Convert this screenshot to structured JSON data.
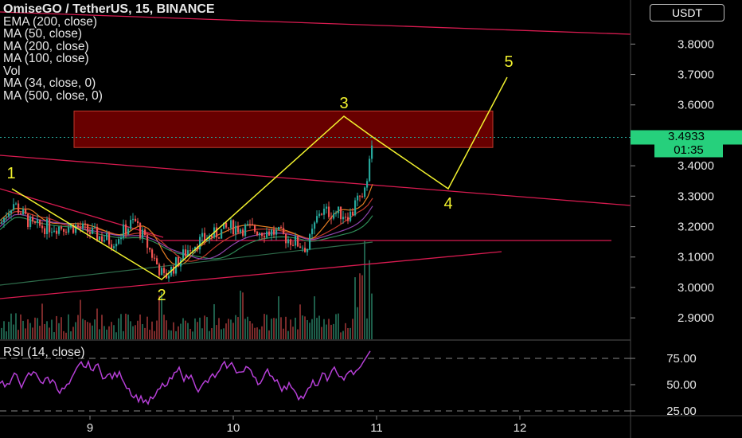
{
  "legend": {
    "title": "OmiseGO / TetherUS, 15, BINANCE",
    "studies": [
      "EMA (200, close)",
      "MA (50, close)",
      "MA (200, close)",
      "MA (100, close)",
      "Vol",
      "MA (34, close, 0)",
      "MA (500, close, 0)"
    ]
  },
  "currency_button": "USDT",
  "price_axis": {
    "ticks": [
      "3.8000",
      "3.7000",
      "3.6000",
      "3.4000",
      "3.3000",
      "3.2000",
      "3.1000",
      "3.0000",
      "2.9000"
    ],
    "current_price": "3.4933",
    "countdown": "01:35",
    "current_color": "#26d07c"
  },
  "time_axis": {
    "ticks": [
      "9",
      "10",
      "11",
      "12"
    ]
  },
  "rsi": {
    "label": "RSI (14, close)",
    "ticks": [
      "75.00",
      "50.00",
      "25.00"
    ],
    "color": "#b53fd6"
  },
  "wave_labels": [
    "1",
    "2",
    "3",
    "4",
    "5"
  ],
  "colors": {
    "wave": "#f2f22e",
    "trendline": "#d81b50",
    "zone": "#8b0000",
    "up": "#26a69a",
    "down": "#ef5350"
  },
  "chart_data": {
    "type": "candlestick",
    "title": "OmiseGO / TetherUS, 15, BINANCE",
    "x_ticks": [
      "9",
      "10",
      "11",
      "12"
    ],
    "y_ticks": [
      3.8,
      3.7,
      3.6,
      3.4,
      3.3,
      3.2,
      3.1,
      3.0,
      2.9
    ],
    "last_price": 3.4933,
    "elliott_wave": [
      {
        "label": "1",
        "price": 3.33
      },
      {
        "label": "2",
        "price": 3.02
      },
      {
        "label": "3",
        "price": 3.56
      },
      {
        "label": "4",
        "price": 3.33
      },
      {
        "label": "5",
        "price": 3.69
      }
    ],
    "resistance_zone": [
      3.46,
      3.58
    ],
    "rsi_levels": [
      75,
      50,
      25
    ]
  }
}
